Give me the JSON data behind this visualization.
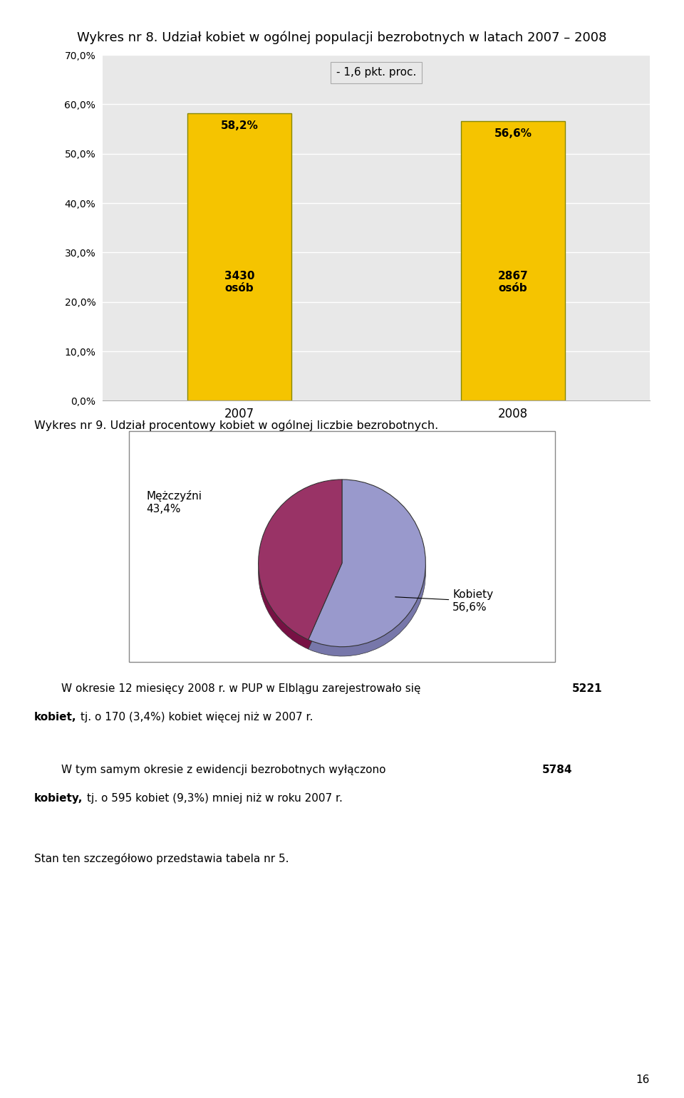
{
  "page_title": "Wykres nr 8. Udział kobiet w ogólnej populacji bezrobotnych w latach 2007 – 2008",
  "bar_categories": [
    "2007",
    "2008"
  ],
  "bar_values": [
    58.2,
    56.6
  ],
  "bar_counts": [
    "3430\nosób",
    "2867\nosób"
  ],
  "bar_color": "#F5C400",
  "bar_edge_color": "#888800",
  "bar_annotation_label": "- 1,6 pkt. proc.",
  "bar_ylim": [
    0,
    70
  ],
  "bar_yticks": [
    0,
    10,
    20,
    30,
    40,
    50,
    60,
    70
  ],
  "bar_ytick_labels": [
    "0,0%",
    "10,0%",
    "20,0%",
    "30,0%",
    "40,0%",
    "50,0%",
    "60,0%",
    "70,0%"
  ],
  "bar_bg_color": "#E8E8E8",
  "chart2_title": "Wykres nr 9. Udział procentowy kobiet w ogólnej liczbie bezrobotnych.",
  "pie_values": [
    56.6,
    43.4
  ],
  "pie_colors": [
    "#9999CC",
    "#993366"
  ],
  "background_color": "#FFFFFF",
  "page_num": "16"
}
